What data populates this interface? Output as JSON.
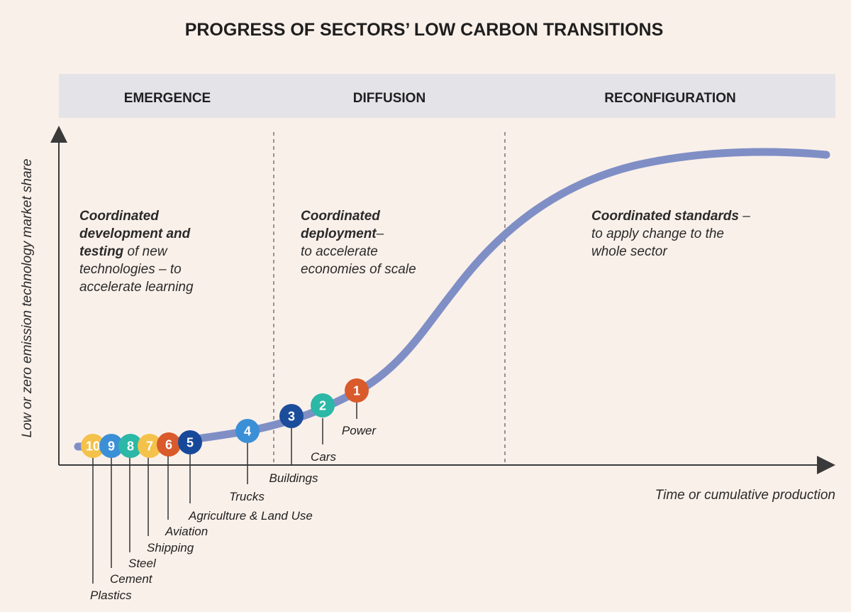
{
  "title": "PROGRESS OF SECTORS’ LOW CARBON TRANSITIONS",
  "phases": [
    {
      "label": "EMERGENCE",
      "desc_bold": [
        "Coordinated",
        "development and",
        "testing"
      ],
      "desc_rest": [
        " of new",
        "technologies – to",
        "accelerate learning"
      ]
    },
    {
      "label": "DIFFUSION",
      "desc_bold": [
        "Coordinated",
        "deployment"
      ],
      "desc_rest": [
        "–",
        "to accelerate",
        "economies of scale"
      ]
    },
    {
      "label": "RECONFIGURATION",
      "desc_bold": [
        "Coordinated standards"
      ],
      "desc_rest": [
        " –",
        "to apply change to the",
        "whole sector"
      ]
    }
  ],
  "axes": {
    "y_label": "Low or zero emission technology  market share",
    "x_label": "Time or cumulative production"
  },
  "colors": {
    "background": "#faf0ea",
    "header_band": "#e4e3e8",
    "curve": "#7f8fc6",
    "axis": "#3a3a3a"
  },
  "sectors": [
    {
      "num": "1",
      "name": "Power",
      "color": "#d95a2b"
    },
    {
      "num": "2",
      "name": "Cars",
      "color": "#2bb8a6"
    },
    {
      "num": "3",
      "name": "Buildings",
      "color": "#1c4d9b"
    },
    {
      "num": "4",
      "name": "Trucks",
      "color": "#3b8fd6"
    },
    {
      "num": "5",
      "name": "Agriculture & Land Use",
      "color": "#17499a"
    },
    {
      "num": "6",
      "name": "Aviation",
      "color": "#d95a2b"
    },
    {
      "num": "7",
      "name": "Shipping",
      "color": "#f4c24a"
    },
    {
      "num": "8",
      "name": "Steel",
      "color": "#2bb8a6"
    },
    {
      "num": "9",
      "name": "Cement",
      "color": "#3b8fd6"
    },
    {
      "num": "10",
      "name": "Plastics",
      "color": "#f4c24a"
    }
  ]
}
